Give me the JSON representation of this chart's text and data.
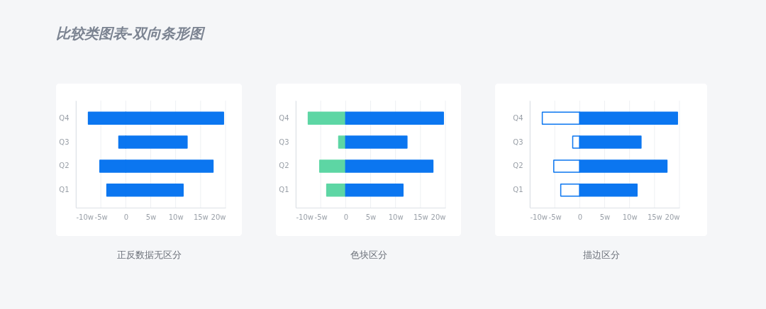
{
  "chart_data": [
    {
      "type": "bar",
      "title": "比较类图表-双向条形图",
      "orientation": "horizontal",
      "stacked": true,
      "categories": [
        "Q4",
        "Q3",
        "Q2",
        "Q1"
      ],
      "series": [
        {
          "color": "#0b76f0",
          "values": [
            -7.5,
            -1.4,
            -5.2,
            -3.8
          ]
        },
        {
          "color": "#0b76f0",
          "values": [
            19.6,
            12.3,
            17.5,
            11.5
          ]
        }
      ],
      "xlim": [
        -10,
        20
      ],
      "xticks": [
        {
          "value": -10,
          "label": "-10w"
        },
        {
          "value": -5,
          "label": "-5w"
        },
        0,
        {
          "value": 5,
          "label": "5w"
        },
        {
          "value": 10,
          "label": "10w"
        },
        {
          "value": 15,
          "label": "15w"
        },
        {
          "value": 20,
          "label": "20w"
        }
      ],
      "grid": "x",
      "annotations": [
        "正反数据无区分"
      ]
    },
    {
      "type": "bar",
      "orientation": "horizontal",
      "stacked": true,
      "categories": [
        "Q4",
        "Q3",
        "Q2",
        "Q1"
      ],
      "series": [
        {
          "color": "#5dd6a4",
          "values": [
            -7.5,
            -1.4,
            -5.2,
            -3.8
          ]
        },
        {
          "color": "#0b76f0",
          "values": [
            19.6,
            12.3,
            17.5,
            11.5
          ]
        }
      ],
      "xlim": [
        -10,
        20
      ],
      "xticks": [
        {
          "value": -10,
          "label": "-10w"
        },
        {
          "value": -5,
          "label": "-5w"
        },
        0,
        {
          "value": 5,
          "label": "5w"
        },
        {
          "value": 10,
          "label": "10w"
        },
        {
          "value": 15,
          "label": "15w"
        },
        {
          "value": 20,
          "label": "20w"
        }
      ],
      "grid": "x",
      "annotations": [
        "色块区分"
      ]
    },
    {
      "type": "bar",
      "orientation": "horizontal",
      "stacked": true,
      "categories": [
        "Q4",
        "Q3",
        "Q2",
        "Q1"
      ],
      "series": [
        {
          "color": "#ffffff",
          "values": [
            -7.5,
            -1.4,
            -5.2,
            -3.8
          ]
        },
        {
          "color": "#0b76f0",
          "values": [
            19.6,
            12.3,
            17.5,
            11.5
          ]
        }
      ],
      "xlim": [
        -10,
        20
      ],
      "xticks": [
        {
          "value": -10,
          "label": "-10w"
        },
        {
          "value": -5,
          "label": "-5w"
        },
        0,
        {
          "value": 5,
          "label": "5w"
        },
        {
          "value": 10,
          "label": "10w"
        },
        {
          "value": 15,
          "label": "15w"
        },
        {
          "value": 20,
          "label": "20w"
        }
      ],
      "grid": "x",
      "annotations": [
        "描边区分"
      ]
    }
  ]
}
